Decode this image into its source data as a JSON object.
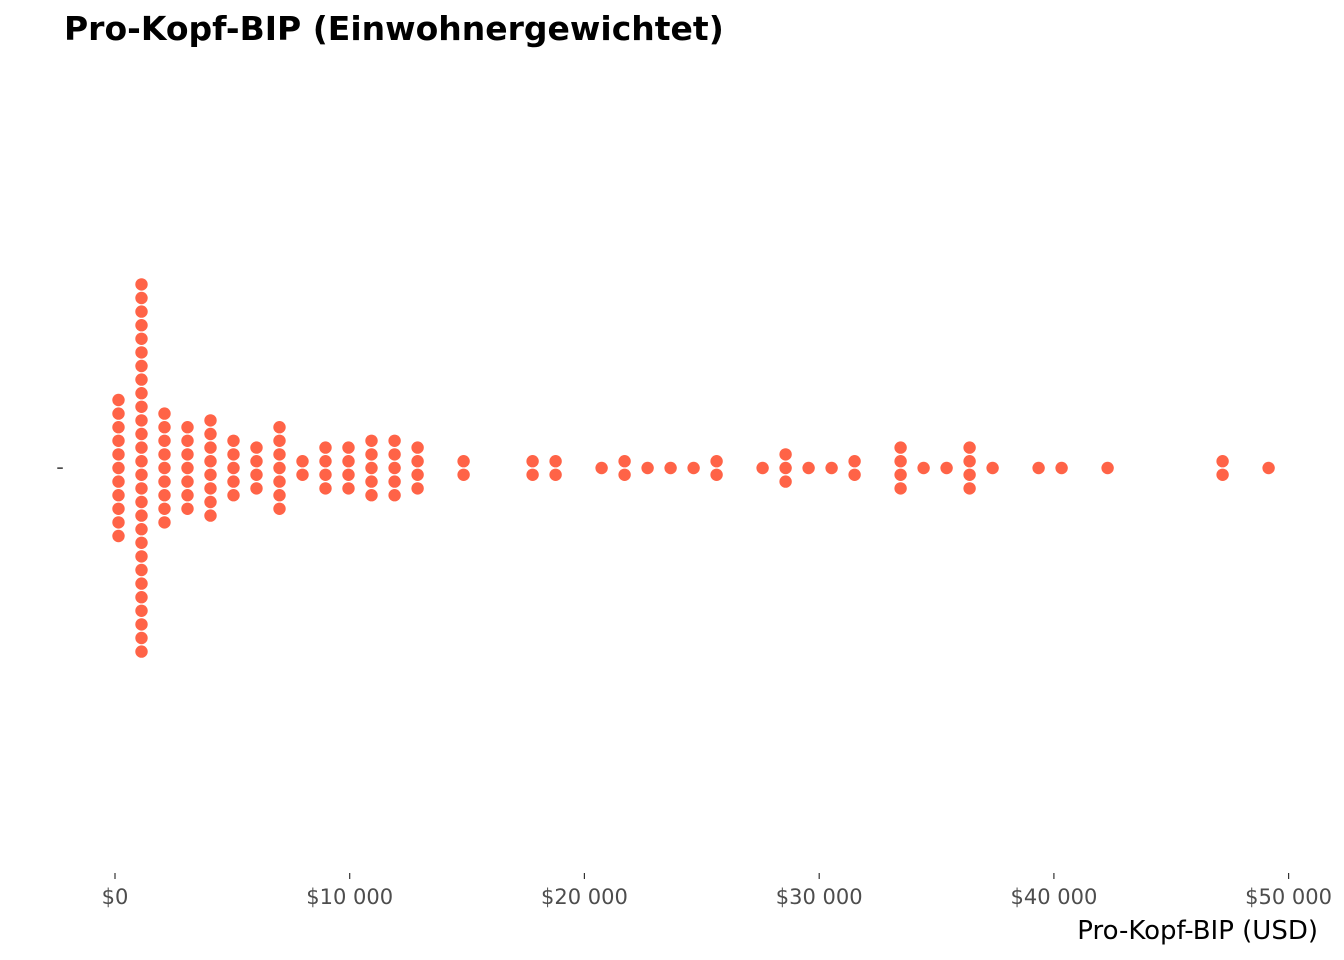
{
  "chart_data": {
    "type": "scatter",
    "subtype": "dotplot",
    "title": "Pro-Kopf-BIP (Einwohnergewichtet)",
    "xlabel": "Pro-Kopf-BIP (USD)",
    "ylabel": "",
    "y_tick_label": "-",
    "xlim": [
      -2200,
      50000
    ],
    "xticks": [
      0,
      10000,
      20000,
      30000,
      40000,
      50000
    ],
    "xtick_labels": [
      "$0",
      "$10 000",
      "$20 000",
      "$30 000",
      "$40 000",
      "$50 000"
    ],
    "grid": false,
    "legend": "none",
    "dot_color": "#FF6347",
    "bins": [
      {
        "x": 150,
        "count": 11
      },
      {
        "x": 1130,
        "count": 28
      },
      {
        "x": 2110,
        "count": 9
      },
      {
        "x": 3090,
        "count": 7
      },
      {
        "x": 4070,
        "count": 8
      },
      {
        "x": 5050,
        "count": 5
      },
      {
        "x": 6030,
        "count": 4
      },
      {
        "x": 7010,
        "count": 7
      },
      {
        "x": 7990,
        "count": 2
      },
      {
        "x": 8970,
        "count": 4
      },
      {
        "x": 9950,
        "count": 4
      },
      {
        "x": 10930,
        "count": 5
      },
      {
        "x": 11910,
        "count": 5
      },
      {
        "x": 12890,
        "count": 4
      },
      {
        "x": 14850,
        "count": 2
      },
      {
        "x": 17790,
        "count": 2
      },
      {
        "x": 18770,
        "count": 2
      },
      {
        "x": 20730,
        "count": 1
      },
      {
        "x": 21710,
        "count": 2
      },
      {
        "x": 22690,
        "count": 1
      },
      {
        "x": 23670,
        "count": 1
      },
      {
        "x": 24650,
        "count": 1
      },
      {
        "x": 25630,
        "count": 2
      },
      {
        "x": 27590,
        "count": 1
      },
      {
        "x": 28570,
        "count": 3
      },
      {
        "x": 29550,
        "count": 1
      },
      {
        "x": 30530,
        "count": 1
      },
      {
        "x": 31510,
        "count": 2
      },
      {
        "x": 33470,
        "count": 4
      },
      {
        "x": 34450,
        "count": 1
      },
      {
        "x": 35430,
        "count": 1
      },
      {
        "x": 36410,
        "count": 4
      },
      {
        "x": 37390,
        "count": 1
      },
      {
        "x": 39350,
        "count": 1
      },
      {
        "x": 40330,
        "count": 1
      },
      {
        "x": 42290,
        "count": 1
      },
      {
        "x": 47190,
        "count": 2
      },
      {
        "x": 49150,
        "count": 1
      }
    ]
  }
}
